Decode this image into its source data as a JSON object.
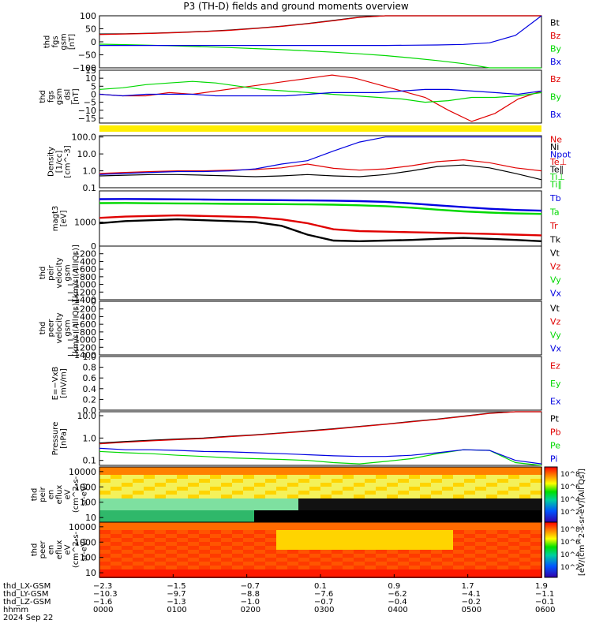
{
  "figure": {
    "title": "P3 (TH-D) fields and ground moments overview",
    "spec_cbar_label": "[eV/(cm^2-s-sr-eV)(All Qs)]",
    "spec_cbar_ticks": [
      "10^8",
      "10^6",
      "10^4",
      "10^2"
    ]
  },
  "colors": {
    "black": "#000000",
    "red": "#e00000",
    "green": "#00d800",
    "blue": "#0000e0",
    "yellow": "#ffee00"
  },
  "chart_data": [
    {
      "type": "line",
      "ylabel": [
        "thd",
        "fgs",
        "gsm",
        "[nT]"
      ],
      "ylim": [
        -100,
        100
      ],
      "ytick_labels": [
        "100",
        "50",
        "0",
        "−50",
        "−100"
      ],
      "series": [
        {
          "name": "Bt",
          "color": "black",
          "y": [
            30,
            31,
            33,
            36,
            40,
            45,
            52,
            60,
            70,
            82,
            95,
            100,
            100,
            100,
            100,
            100,
            100,
            100
          ]
        },
        {
          "name": "Bz",
          "color": "red",
          "y": [
            28,
            30,
            32,
            35,
            39,
            44,
            51,
            59,
            69,
            81,
            94,
            100,
            100,
            100,
            100,
            100,
            100,
            100
          ]
        },
        {
          "name": "By",
          "color": "green",
          "y": [
            -9,
            -11,
            -13,
            -16,
            -19,
            -22,
            -26,
            -30,
            -35,
            -40,
            -46,
            -53,
            -62,
            -72,
            -84,
            -100,
            -100,
            -100
          ]
        },
        {
          "name": "Bx",
          "color": "blue",
          "y": [
            -14,
            -14,
            -14,
            -14,
            -14,
            -14,
            -14,
            -14,
            -14,
            -14,
            -14,
            -14,
            -13,
            -12,
            -10,
            -4,
            25,
            100
          ]
        }
      ]
    },
    {
      "type": "line",
      "ylabel": [
        "thd",
        "fgs",
        "gsm",
        "_dsl",
        "[nT]"
      ],
      "ylim": [
        -18,
        15
      ],
      "ytick_labels": [
        "15",
        "10",
        "5",
        "0",
        "−5",
        "−10",
        "−15"
      ],
      "series": [
        {
          "name": "Bz",
          "color": "red",
          "y": [
            0,
            -1,
            -1,
            1,
            0,
            2,
            4,
            6,
            8,
            10,
            12,
            10,
            6,
            2,
            -2,
            -10,
            -17,
            -12,
            -3,
            2
          ]
        },
        {
          "name": "By",
          "color": "green",
          "y": [
            3,
            4,
            6,
            7,
            8,
            7,
            5,
            3,
            2,
            1,
            0,
            -1,
            -2,
            -3,
            -5,
            -4,
            -2,
            -2,
            -1,
            1
          ]
        },
        {
          "name": "Bx",
          "color": "blue",
          "y": [
            0,
            -1,
            0,
            0,
            0,
            -1,
            -1,
            -1,
            -1,
            0,
            1,
            1,
            1,
            2,
            3,
            3,
            2,
            1,
            0,
            2
          ]
        }
      ]
    },
    {
      "type": "line",
      "ylabel": [
        "Density",
        "[1/cc]",
        "[cm^-3]"
      ],
      "yscale": "log",
      "ylim": [
        0.1,
        120
      ],
      "ytick_labels": [
        "100.0",
        "10.0",
        "1.0",
        "0.1"
      ],
      "series": [
        {
          "name": "Ne",
          "color": "red",
          "y": [
            0.7,
            0.8,
            0.9,
            1.0,
            1.0,
            1.1,
            1.2,
            1.5,
            2.5,
            1.4,
            1.1,
            1.3,
            2.0,
            3.5,
            4.5,
            3.0,
            1.5,
            1.0
          ]
        },
        {
          "name": "Ni",
          "color": "black",
          "y": [
            0.5,
            0.55,
            0.6,
            0.6,
            0.55,
            0.5,
            0.45,
            0.5,
            0.6,
            0.5,
            0.45,
            0.6,
            1.0,
            1.8,
            2.2,
            1.5,
            0.7,
            0.3
          ]
        },
        {
          "name": "Npot",
          "color": "blue",
          "y": [
            0.6,
            0.7,
            0.8,
            0.9,
            0.9,
            1.0,
            1.3,
            2.5,
            4.0,
            15,
            50,
            100,
            100,
            100,
            100,
            100,
            100,
            100
          ]
        },
        {
          "name": "Te⊥",
          "color": "red",
          "y": []
        },
        {
          "name": "Te∥",
          "color": "black",
          "y": []
        },
        {
          "name": "Ti⊥",
          "color": "green",
          "y": []
        },
        {
          "name": "Ti∥",
          "color": "green",
          "y": []
        }
      ]
    },
    {
      "type": "line",
      "ylabel": [
        "magt3",
        "[eV]"
      ],
      "yscale": "log",
      "ylim": [
        100,
        20000
      ],
      "ytick_labels": [
        "1000"
      ],
      "series": [
        {
          "name": "Tb",
          "color": "blue",
          "y": [
            9000,
            9200,
            9000,
            8900,
            8700,
            8500,
            8300,
            8200,
            8000,
            7800,
            7500,
            7000,
            6000,
            5000,
            4200,
            3600,
            3200,
            3000
          ]
        },
        {
          "name": "Ta",
          "color": "green",
          "y": [
            6200,
            6300,
            6100,
            6000,
            5900,
            5800,
            5700,
            5600,
            5500,
            5300,
            5000,
            4600,
            4000,
            3300,
            2800,
            2500,
            2300,
            2200
          ]
        },
        {
          "name": "Tr",
          "color": "red",
          "y": [
            1500,
            1700,
            1800,
            1900,
            1800,
            1700,
            1600,
            1300,
            900,
            500,
            420,
            400,
            380,
            360,
            340,
            320,
            300,
            280
          ]
        },
        {
          "name": "Tk",
          "color": "black",
          "y": [
            900,
            1100,
            1200,
            1300,
            1200,
            1100,
            1000,
            700,
            300,
            170,
            160,
            170,
            180,
            200,
            220,
            200,
            180,
            160
          ]
        }
      ]
    },
    {
      "type": "line",
      "ylabel": [
        "thd",
        "peir",
        "velocity",
        "gsm",
        "[km/s (All Qs)]"
      ],
      "ylim": [
        -1400,
        0
      ],
      "ytick_labels": [
        "0",
        "−200",
        "−400",
        "−600",
        "−800",
        "−1000",
        "−1200",
        "−1400"
      ],
      "series": [
        {
          "name": "Vt",
          "color": "black",
          "y": []
        },
        {
          "name": "Vz",
          "color": "red",
          "y": []
        },
        {
          "name": "Vy",
          "color": "green",
          "y": []
        },
        {
          "name": "Vx",
          "color": "blue",
          "y": []
        }
      ]
    },
    {
      "type": "line",
      "ylabel": [
        "thd",
        "peer",
        "velocity",
        "gsm",
        "[km/s (All Qs)]"
      ],
      "ylim": [
        -1400,
        0
      ],
      "ytick_labels": [
        "0",
        "−200",
        "−400",
        "−600",
        "−800",
        "−1000",
        "−1200",
        "−1400"
      ],
      "series": [
        {
          "name": "Vt",
          "color": "black",
          "y": []
        },
        {
          "name": "Vz",
          "color": "red",
          "y": []
        },
        {
          "name": "Vy",
          "color": "green",
          "y": []
        },
        {
          "name": "Vx",
          "color": "blue",
          "y": []
        }
      ]
    },
    {
      "type": "line",
      "ylabel": [
        "E=−VxB",
        "[mV/m]"
      ],
      "ylim": [
        0,
        1
      ],
      "ytick_labels": [
        "1.0",
        "0.8",
        "0.6",
        "0.4",
        "0.2",
        "0.0"
      ],
      "series": [
        {
          "name": "Ez",
          "color": "red",
          "y": []
        },
        {
          "name": "Ey",
          "color": "green",
          "y": []
        },
        {
          "name": "Ex",
          "color": "blue",
          "y": []
        }
      ]
    },
    {
      "type": "line",
      "ylabel": [
        "Pressure",
        "[nPa]"
      ],
      "yscale": "log",
      "ylim": [
        0.06,
        15
      ],
      "ytick_labels": [
        "10.0",
        "1.0",
        "0.1"
      ],
      "series": [
        {
          "name": "Pt",
          "color": "black",
          "y": [
            0.6,
            0.7,
            0.8,
            0.9,
            1.0,
            1.2,
            1.4,
            1.7,
            2.1,
            2.6,
            3.3,
            4.2,
            5.5,
            7.0,
            9.5,
            13,
            15,
            15
          ]
        },
        {
          "name": "Pb",
          "color": "red",
          "y": [
            0.55,
            0.65,
            0.75,
            0.85,
            0.95,
            1.15,
            1.35,
            1.65,
            2.0,
            2.5,
            3.2,
            4.1,
            5.3,
            6.8,
            9.2,
            12.5,
            15,
            15
          ]
        },
        {
          "name": "Pe",
          "color": "green",
          "y": [
            0.25,
            0.22,
            0.2,
            0.17,
            0.15,
            0.13,
            0.12,
            0.11,
            0.1,
            0.08,
            0.07,
            0.09,
            0.12,
            0.2,
            0.3,
            0.28,
            0.08,
            0.06
          ]
        },
        {
          "name": "Pi",
          "color": "blue",
          "y": [
            0.35,
            0.3,
            0.3,
            0.28,
            0.25,
            0.24,
            0.22,
            0.2,
            0.18,
            0.16,
            0.15,
            0.15,
            0.17,
            0.22,
            0.3,
            0.28,
            0.1,
            0.07
          ]
        }
      ]
    },
    {
      "type": "heatmap",
      "ylabel": [
        "thd",
        "peir",
        "en",
        "eflux",
        "eV",
        "(cm^2-s-",
        "sr-eV)"
      ],
      "yscale": "log",
      "ylim": [
        5,
        20000
      ],
      "ytick_labels": [
        "10000",
        "1000",
        "100",
        "10"
      ]
    },
    {
      "type": "heatmap",
      "ylabel": [
        "thd",
        "peer",
        "en",
        "eflux",
        "eV",
        "(cm^2-s-",
        "sr-eV)"
      ],
      "yscale": "log",
      "ylim": [
        5,
        20000
      ],
      "ytick_labels": [
        "10000",
        "1000",
        "100",
        "10"
      ]
    }
  ],
  "xaxis": {
    "rows": [
      {
        "label": "thd_LX-GSM",
        "values": [
          "−2.3",
          "−1.5",
          "−0.7",
          "0.1",
          "0.9",
          "1.7",
          "1.9"
        ]
      },
      {
        "label": "thd_LY-GSM",
        "values": [
          "−10.3",
          "−9.7",
          "−8.8",
          "−7.6",
          "−6.2",
          "−4.1",
          "−1.1"
        ]
      },
      {
        "label": "thd_LZ-GSM",
        "values": [
          "−1.6",
          "−1.3",
          "−1.0",
          "−0.7",
          "−0.4",
          "−0.2",
          "−0.1"
        ]
      },
      {
        "label": "hhmm",
        "values": [
          "0000",
          "0100",
          "0200",
          "0300",
          "0400",
          "0500",
          "0600"
        ]
      }
    ],
    "date": "2024 Sep 22"
  }
}
